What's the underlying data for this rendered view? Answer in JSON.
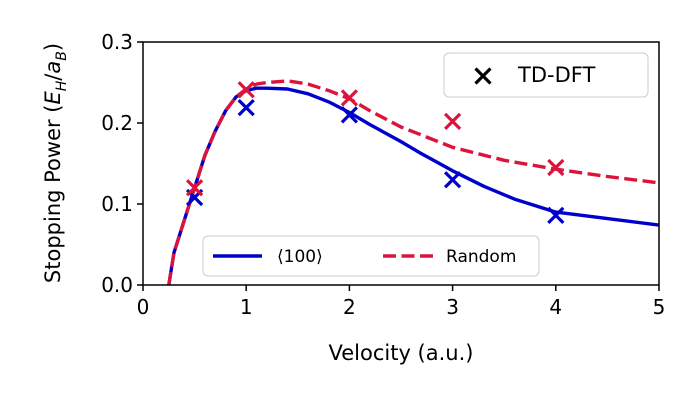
{
  "chart_data": {
    "type": "line",
    "xlabel": "Velocity (a.u.)",
    "ylabel_prefix": "Stopping Power (",
    "ylabel_math": {
      "E": "E",
      "H": "H",
      "slash": "/",
      "a": "a",
      "B": "B"
    },
    "ylabel_suffix": ")",
    "xlim": [
      0,
      5
    ],
    "ylim": [
      0,
      0.3
    ],
    "xticks": [
      0,
      1,
      2,
      3,
      4,
      5
    ],
    "xtick_labels": [
      "0",
      "1",
      "2",
      "3",
      "4",
      "5"
    ],
    "yticks": [
      0.0,
      0.1,
      0.2,
      0.3
    ],
    "ytick_labels": [
      "0.0",
      "0.1",
      "0.2",
      "0.3"
    ],
    "grid": false,
    "series": [
      {
        "name": "⟨100⟩",
        "style": "solid",
        "color": "#0000cc",
        "x": [
          0.25,
          0.3,
          0.4,
          0.5,
          0.6,
          0.7,
          0.8,
          0.9,
          1.0,
          1.1,
          1.2,
          1.4,
          1.6,
          1.8,
          2.0,
          2.2,
          2.5,
          2.7,
          3.0,
          3.3,
          3.6,
          4.0,
          4.5,
          5.0
        ],
        "y": [
          0.0,
          0.04,
          0.08,
          0.12,
          0.16,
          0.19,
          0.215,
          0.232,
          0.24,
          0.243,
          0.243,
          0.242,
          0.236,
          0.226,
          0.213,
          0.198,
          0.177,
          0.162,
          0.141,
          0.122,
          0.106,
          0.09,
          0.082,
          0.074
        ]
      },
      {
        "name": "Random",
        "style": "dashed",
        "color": "#dc143c",
        "x": [
          0.25,
          0.3,
          0.4,
          0.5,
          0.6,
          0.7,
          0.8,
          0.9,
          1.0,
          1.1,
          1.2,
          1.4,
          1.6,
          1.8,
          2.0,
          2.2,
          2.5,
          3.0,
          3.5,
          4.0,
          4.5,
          5.0
        ],
        "y": [
          0.0,
          0.04,
          0.08,
          0.12,
          0.16,
          0.19,
          0.215,
          0.232,
          0.242,
          0.248,
          0.25,
          0.252,
          0.248,
          0.24,
          0.23,
          0.215,
          0.195,
          0.17,
          0.154,
          0.143,
          0.134,
          0.126
        ]
      }
    ],
    "markers": {
      "name": "TD-DFT",
      "legend_color": "#000000",
      "sets": [
        {
          "color": "#0000cc",
          "x": [
            0.5,
            1.0,
            2.0,
            3.0,
            4.0
          ],
          "y": [
            0.108,
            0.219,
            0.21,
            0.13,
            0.086
          ]
        },
        {
          "color": "#dc143c",
          "x": [
            0.5,
            1.0,
            2.0,
            3.0,
            4.0
          ],
          "y": [
            0.12,
            0.241,
            0.231,
            0.202,
            0.145
          ]
        }
      ]
    },
    "legends": {
      "markers": "upper right",
      "lines": "lower center"
    }
  }
}
